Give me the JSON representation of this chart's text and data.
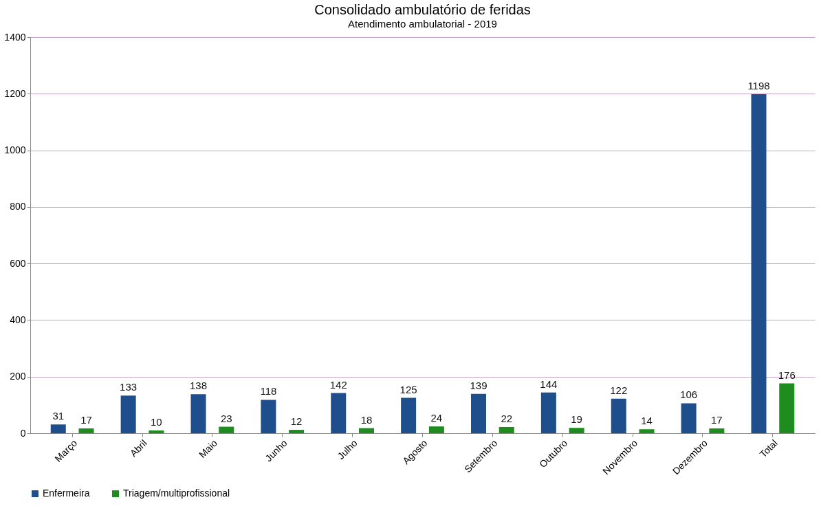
{
  "chart_data": {
    "type": "bar",
    "title": "Consolidado ambulatório de feridas",
    "subtitle": "Atendimento ambulatorial - 2019",
    "categories": [
      "Março",
      "Abril",
      "Maio",
      "Junho",
      "Julho",
      "Agosto",
      "Setembro",
      "Outubro",
      "Novembro",
      "Dezembro",
      "Total"
    ],
    "series": [
      {
        "name": "Enfermeira",
        "color": "#1f4e8c",
        "values": [
          31,
          133,
          138,
          118,
          142,
          125,
          139,
          144,
          122,
          106,
          1198
        ]
      },
      {
        "name": "Triagem/multiprofissional",
        "color": "#1e8c1e",
        "values": [
          17,
          10,
          23,
          12,
          18,
          24,
          22,
          19,
          14,
          17,
          176
        ]
      }
    ],
    "ylim": [
      0,
      1400
    ],
    "yticks": [
      0,
      200,
      400,
      600,
      800,
      1000,
      1200,
      1400
    ],
    "grid": "y",
    "legend": "bottom",
    "data_labels": true
  }
}
